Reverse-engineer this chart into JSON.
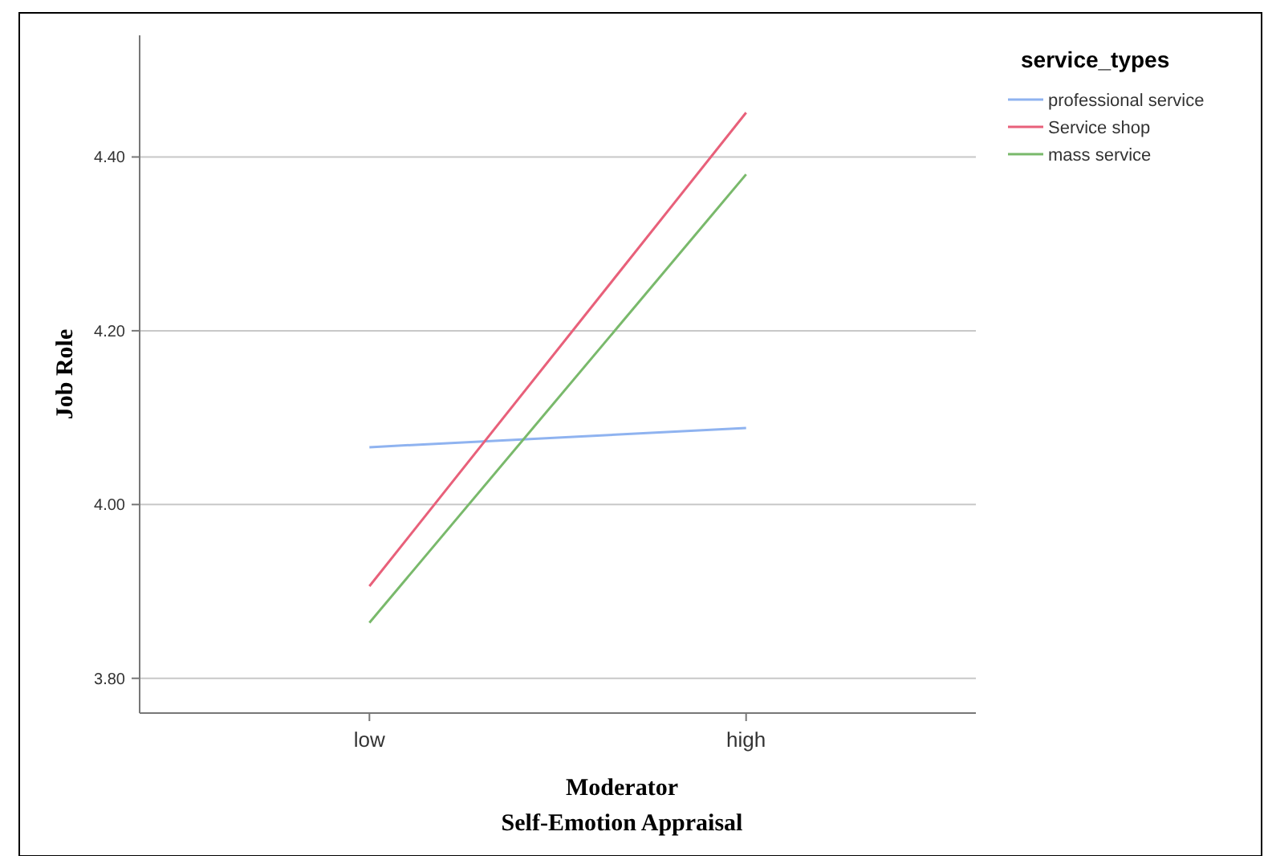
{
  "chart_data": {
    "type": "line",
    "xlabel": "Moderator\nSelf-Emotion Appraisal",
    "ylabel": "Job Role",
    "legend_title": "service_types",
    "categories": [
      "low",
      "high"
    ],
    "series": [
      {
        "name": "professional service",
        "color": "#8fb3f0",
        "values": [
          4.066,
          4.088
        ]
      },
      {
        "name": "Service shop",
        "color": "#e8607a",
        "values": [
          3.906,
          4.451
        ]
      },
      {
        "name": "mass service",
        "color": "#79b96b",
        "values": [
          3.864,
          4.38
        ]
      }
    ],
    "ylim": [
      3.76,
      4.54
    ],
    "yticks": [
      {
        "value": 3.8,
        "label": "3.80"
      },
      {
        "value": 4.0,
        "label": "4.00"
      },
      {
        "value": 4.2,
        "label": "4.20"
      },
      {
        "value": 4.4,
        "label": "4.40"
      }
    ],
    "grid": "y",
    "legend": "top right",
    "marker": "none",
    "line_style": "solid"
  }
}
